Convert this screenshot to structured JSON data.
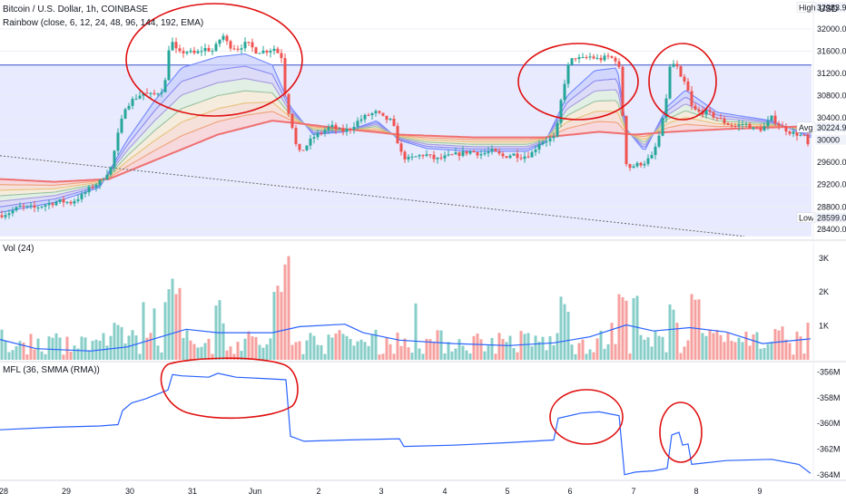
{
  "header": {
    "symbol": "Bitcoin / U.S. Dollar, 1h, COINBASE",
    "rainbow": "Rainbow (close, 6, 12, 24, 48, 96, 144, 192, EMA)",
    "currency": "USD",
    "vol_title": "Vol (24)",
    "mfl_title": "MFL (36, SMMA (RMA))"
  },
  "chart_data": [
    {
      "type": "candlestick",
      "title": "Bitcoin / U.S. Dollar, 1h, COINBASE",
      "ylim": [
        28250,
        32520
      ],
      "y_ticks": [
        32000,
        31600,
        31200,
        30800,
        30400,
        30000,
        29600,
        29200,
        28800,
        28400
      ],
      "price_labels": [
        {
          "tag": "High",
          "value": "32383.96"
        },
        {
          "tag": "Avg",
          "value": "30224.93"
        },
        {
          "tag": "Low",
          "value": "28599.01"
        },
        {
          "tag": "",
          "value": "30000"
        }
      ],
      "colors": {
        "up": "#26a69a",
        "down": "#ef5350",
        "ema_fast": "#3a66d9",
        "ema_slow": "#ef5350",
        "band": "#e8eaff",
        "annotation": "#e01010"
      },
      "path": [
        [
          0,
          28650
        ],
        [
          10,
          28700
        ],
        [
          22,
          28800
        ],
        [
          38,
          28780
        ],
        [
          52,
          28850
        ],
        [
          66,
          28900
        ],
        [
          78,
          28880
        ],
        [
          90,
          29000
        ],
        [
          100,
          29150
        ],
        [
          110,
          29250
        ],
        [
          122,
          29500
        ],
        [
          130,
          30100
        ],
        [
          138,
          30600
        ],
        [
          148,
          30750
        ],
        [
          158,
          30850
        ],
        [
          168,
          30800
        ],
        [
          178,
          30900
        ],
        [
          183,
          31100
        ],
        [
          186,
          31650
        ],
        [
          190,
          31750
        ],
        [
          196,
          31550
        ],
        [
          205,
          31600
        ],
        [
          215,
          31550
        ],
        [
          225,
          31650
        ],
        [
          235,
          31600
        ],
        [
          240,
          31750
        ],
        [
          245,
          31900
        ],
        [
          252,
          31700
        ],
        [
          262,
          31650
        ],
        [
          272,
          31750
        ],
        [
          282,
          31600
        ],
        [
          292,
          31600
        ],
        [
          302,
          31650
        ],
        [
          310,
          31500
        ],
        [
          315,
          30700
        ],
        [
          322,
          30250
        ],
        [
          328,
          29750
        ],
        [
          335,
          29850
        ],
        [
          345,
          30050
        ],
        [
          355,
          30150
        ],
        [
          365,
          30250
        ],
        [
          375,
          30150
        ],
        [
          385,
          30200
        ],
        [
          395,
          30350
        ],
        [
          405,
          30450
        ],
        [
          415,
          30500
        ],
        [
          422,
          30400
        ],
        [
          430,
          30350
        ],
        [
          436,
          30150
        ],
        [
          440,
          29800
        ],
        [
          448,
          29650
        ],
        [
          458,
          29700
        ],
        [
          468,
          29750
        ],
        [
          480,
          29650
        ],
        [
          492,
          29700
        ],
        [
          505,
          29750
        ],
        [
          518,
          29800
        ],
        [
          530,
          29750
        ],
        [
          542,
          29800
        ],
        [
          555,
          29700
        ],
        [
          565,
          29750
        ],
        [
          575,
          29700
        ],
        [
          585,
          29750
        ],
        [
          594,
          29950
        ],
        [
          602,
          30000
        ],
        [
          612,
          30050
        ],
        [
          618,
          30700
        ],
        [
          625,
          31300
        ],
        [
          632,
          31500
        ],
        [
          640,
          31450
        ],
        [
          650,
          31500
        ],
        [
          660,
          31450
        ],
        [
          670,
          31500
        ],
        [
          678,
          31450
        ],
        [
          684,
          31200
        ],
        [
          688,
          29700
        ],
        [
          692,
          29500
        ],
        [
          700,
          29550
        ],
        [
          710,
          29600
        ],
        [
          718,
          29700
        ],
        [
          725,
          30000
        ],
        [
          732,
          30500
        ],
        [
          738,
          31300
        ],
        [
          744,
          31400
        ],
        [
          750,
          31100
        ],
        [
          756,
          31000
        ],
        [
          762,
          30600
        ],
        [
          768,
          30500
        ],
        [
          778,
          30500
        ],
        [
          790,
          30400
        ],
        [
          800,
          30300
        ],
        [
          810,
          30250
        ],
        [
          820,
          30300
        ],
        [
          830,
          30200
        ],
        [
          840,
          30200
        ],
        [
          850,
          30400
        ],
        [
          860,
          30250
        ],
        [
          870,
          30150
        ],
        [
          880,
          30100
        ],
        [
          888,
          30050
        ],
        [
          893,
          29700
        ]
      ],
      "ema_fast_path": [
        [
          0,
          28700
        ],
        [
          60,
          28880
        ],
        [
          110,
          29150
        ],
        [
          140,
          30000
        ],
        [
          170,
          30700
        ],
        [
          200,
          31300
        ],
        [
          240,
          31500
        ],
        [
          270,
          31550
        ],
        [
          300,
          31350
        ],
        [
          320,
          30600
        ],
        [
          345,
          30100
        ],
        [
          380,
          30150
        ],
        [
          415,
          30350
        ],
        [
          440,
          30000
        ],
        [
          470,
          29850
        ],
        [
          520,
          29800
        ],
        [
          580,
          29800
        ],
        [
          600,
          29950
        ],
        [
          625,
          30800
        ],
        [
          655,
          31250
        ],
        [
          680,
          31300
        ],
        [
          690,
          30200
        ],
        [
          710,
          29800
        ],
        [
          735,
          30600
        ],
        [
          755,
          30900
        ],
        [
          790,
          30500
        ],
        [
          850,
          30350
        ],
        [
          893,
          30050
        ]
      ],
      "ema_slow_path": [
        [
          0,
          29300
        ],
        [
          60,
          29250
        ],
        [
          120,
          29300
        ],
        [
          180,
          29700
        ],
        [
          240,
          30100
        ],
        [
          300,
          30350
        ],
        [
          330,
          30300
        ],
        [
          380,
          30200
        ],
        [
          440,
          30100
        ],
        [
          520,
          30050
        ],
        [
          600,
          30050
        ],
        [
          660,
          30150
        ],
        [
          700,
          30100
        ],
        [
          740,
          30150
        ],
        [
          800,
          30200
        ],
        [
          893,
          30250
        ]
      ],
      "annotations": [
        "ellipse-top-left",
        "ellipse-jun6",
        "ellipse-jun7-8"
      ]
    },
    {
      "type": "bar",
      "title": "Vol (24)",
      "ylim": [
        0,
        3450
      ],
      "y_ticks": [
        {
          "label": "3K",
          "value": 3000
        },
        {
          "label": "2K",
          "value": 2000
        },
        {
          "label": "1K",
          "value": 1000
        }
      ],
      "ma_color": "#2962ff",
      "ma_path": [
        [
          0,
          600
        ],
        [
          40,
          330
        ],
        [
          100,
          260
        ],
        [
          140,
          380
        ],
        [
          180,
          700
        ],
        [
          205,
          900
        ],
        [
          240,
          800
        ],
        [
          300,
          800
        ],
        [
          330,
          980
        ],
        [
          380,
          1050
        ],
        [
          400,
          800
        ],
        [
          440,
          580
        ],
        [
          500,
          480
        ],
        [
          560,
          420
        ],
        [
          610,
          500
        ],
        [
          650,
          680
        ],
        [
          690,
          1030
        ],
        [
          720,
          850
        ],
        [
          760,
          950
        ],
        [
          800,
          820
        ],
        [
          840,
          480
        ],
        [
          893,
          620
        ]
      ],
      "spikes": [
        [
          130,
          1100
        ],
        [
          185,
          1900
        ],
        [
          195,
          2050
        ],
        [
          240,
          1850
        ],
        [
          305,
          2050
        ],
        [
          310,
          2200
        ],
        [
          316,
          3300
        ],
        [
          620,
          1900
        ],
        [
          685,
          2050
        ],
        [
          700,
          1900
        ],
        [
          740,
          1650
        ],
        [
          765,
          1800
        ],
        [
          857,
          1000
        ],
        [
          893,
          1100
        ]
      ]
    },
    {
      "type": "line",
      "title": "MFL (36, SMMA (RMA))",
      "ylim": [
        -364.3,
        -355.4
      ],
      "y_ticks": [
        {
          "label": "-356M",
          "value": -356
        },
        {
          "label": "-358M",
          "value": -358
        },
        {
          "label": "-360M",
          "value": -360
        },
        {
          "label": "-362M",
          "value": -362
        },
        {
          "label": "-364M",
          "value": -364
        }
      ],
      "color": "#2962ff",
      "values": [
        [
          0,
          -360.5
        ],
        [
          60,
          -360.3
        ],
        [
          110,
          -360.2
        ],
        [
          130,
          -360.1
        ],
        [
          135,
          -359.0
        ],
        [
          145,
          -358.4
        ],
        [
          160,
          -358.1
        ],
        [
          185,
          -357.4
        ],
        [
          190,
          -356.2
        ],
        [
          200,
          -356.3
        ],
        [
          230,
          -356.4
        ],
        [
          240,
          -356.1
        ],
        [
          260,
          -356.4
        ],
        [
          290,
          -356.5
        ],
        [
          315,
          -356.6
        ],
        [
          320,
          -361.0
        ],
        [
          335,
          -361.4
        ],
        [
          380,
          -361.3
        ],
        [
          440,
          -361.2
        ],
        [
          445,
          -361.8
        ],
        [
          500,
          -361.7
        ],
        [
          560,
          -361.5
        ],
        [
          610,
          -361.3
        ],
        [
          615,
          -359.6
        ],
        [
          640,
          -359.2
        ],
        [
          660,
          -359.1
        ],
        [
          682,
          -359.4
        ],
        [
          688,
          -364.0
        ],
        [
          700,
          -363.8
        ],
        [
          720,
          -363.7
        ],
        [
          735,
          -363.5
        ],
        [
          740,
          -360.9
        ],
        [
          748,
          -360.7
        ],
        [
          752,
          -361.7
        ],
        [
          758,
          -361.6
        ],
        [
          762,
          -363.2
        ],
        [
          800,
          -362.9
        ],
        [
          850,
          -362.8
        ],
        [
          880,
          -363.2
        ],
        [
          893,
          -363.9
        ]
      ]
    }
  ],
  "x_axis": {
    "labels": [
      {
        "x": 4,
        "label": "28"
      },
      {
        "x": 73,
        "label": "29"
      },
      {
        "x": 143,
        "label": "30"
      },
      {
        "x": 212,
        "label": "31"
      },
      {
        "x": 281,
        "label": "Jun"
      },
      {
        "x": 351,
        "label": "2"
      },
      {
        "x": 420,
        "label": "3"
      },
      {
        "x": 490,
        "label": "4"
      },
      {
        "x": 559,
        "label": "5"
      },
      {
        "x": 628,
        "label": "6"
      },
      {
        "x": 698,
        "label": "7"
      },
      {
        "x": 767,
        "label": "8"
      },
      {
        "x": 837,
        "label": "9"
      }
    ]
  }
}
